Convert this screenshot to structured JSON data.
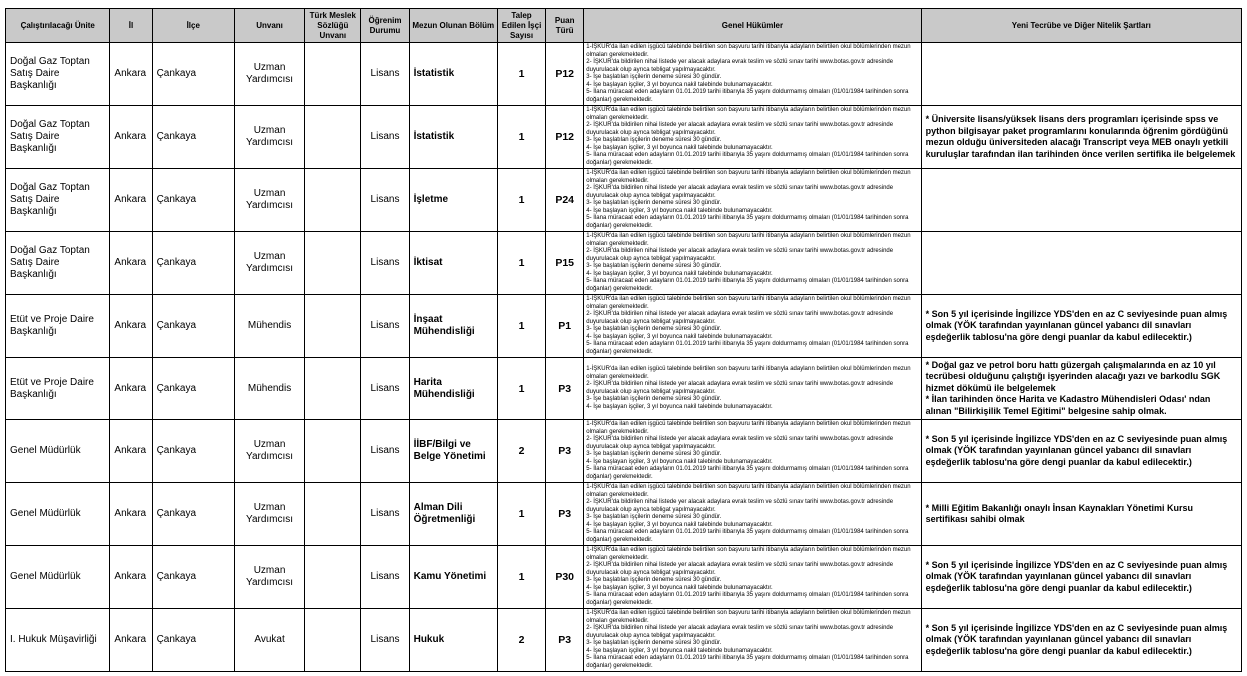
{
  "colors": {
    "header_bg": "#c9c9c9",
    "border": "#000000",
    "page_bg": "#ffffff"
  },
  "table": {
    "headers": [
      {
        "id": "unit",
        "label": "Çalıştırılacağı Ünite"
      },
      {
        "id": "province",
        "label": "İl"
      },
      {
        "id": "district",
        "label": "İlçe"
      },
      {
        "id": "title",
        "label": "Unvanı"
      },
      {
        "id": "dictionary-title",
        "label": "Türk Meslek Sözlüğü Unvanı"
      },
      {
        "id": "education",
        "label": "Öğrenim Durumu"
      },
      {
        "id": "department",
        "label": "Mezun Olunan Bölüm"
      },
      {
        "id": "requested-count",
        "label": "Talep Edilen İşçi Sayısı"
      },
      {
        "id": "score-type",
        "label": "Puan Türü"
      },
      {
        "id": "general-provisions",
        "label": "Genel Hükümler"
      },
      {
        "id": "requirements",
        "label": "Yeni Tecrübe ve Diğer Nitelik Şartları"
      }
    ],
    "general_provisions_items": [
      "1-İŞKUR'da ilan edilen işgücü talebinde belirtilen son başvuru tarihi itibarıyla adayların belirtilen okul bölümlerinden mezun olmaları gerekmektedir.",
      "2- İŞKUR'da bildirilen nihai listede yer alacak adaylara evrak teslim ve sözlü sınav tarihi www.botas.gov.tr adresinde duyurulacak olup ayrıca tebligat yapılmayacaktır.",
      "3- İşe başlatılan işçilerin deneme süresi 30 gündür.",
      "4- İşe başlayan işçiler,  3 yıl boyunca nakil talebinde bulunamayacaktır.",
      "5- İlana müracaat eden adayların 01.01.2019 tarihi itibarıyla 35 yaşını doldurmamış olmaları (01/01/1984 tarihinden sonra doğanlar) gerekmektedir."
    ],
    "rows": [
      {
        "unit": "Doğal Gaz Toptan Satış Daire Başkanlığı",
        "province": "Ankara",
        "district": "Çankaya",
        "title": "Uzman Yardımcısı",
        "dictionary_title": "",
        "education": "Lisans",
        "department": "İstatistik",
        "requested_count": "1",
        "score_type": "P12",
        "general_provisions_count": 5,
        "requirements": []
      },
      {
        "unit": "Doğal Gaz Toptan Satış Daire Başkanlığı",
        "province": "Ankara",
        "district": "Çankaya",
        "title": "Uzman Yardımcısı",
        "dictionary_title": "",
        "education": "Lisans",
        "department": "İstatistik",
        "requested_count": "1",
        "score_type": "P12",
        "general_provisions_count": 5,
        "requirements": [
          "* Üniversite lisans/yüksek lisans ders programları içerisinde spss ve python bilgisayar paket programlarını konularında öğrenim gördüğünü mezun olduğu üniversiteden alacağı Transcript veya MEB onaylı yetkili kuruluşlar tarafından ilan tarihinden önce verilen sertifika ile belgelemek"
        ]
      },
      {
        "unit": "Doğal Gaz Toptan Satış Daire Başkanlığı",
        "province": "Ankara",
        "district": "Çankaya",
        "title": "Uzman Yardımcısı",
        "dictionary_title": "",
        "education": "Lisans",
        "department": "İşletme",
        "requested_count": "1",
        "score_type": "P24",
        "general_provisions_count": 5,
        "requirements": []
      },
      {
        "unit": "Doğal Gaz Toptan Satış Daire Başkanlığı",
        "province": "Ankara",
        "district": "Çankaya",
        "title": "Uzman Yardımcısı",
        "dictionary_title": "",
        "education": "Lisans",
        "department": "İktisat",
        "requested_count": "1",
        "score_type": "P15",
        "general_provisions_count": 5,
        "requirements": []
      },
      {
        "unit": "Etüt ve Proje Daire Başkanlığı",
        "province": "Ankara",
        "district": "Çankaya",
        "title": "Mühendis",
        "dictionary_title": "",
        "education": "Lisans",
        "department": "İnşaat Mühendisliği",
        "requested_count": "1",
        "score_type": "P1",
        "general_provisions_count": 5,
        "requirements": [
          "* Son 5 yıl içerisinde İngilizce  YDS'den en az C seviyesinde puan almış olmak (YÖK tarafından yayınlanan güncel yabancı dil sınavları eşdeğerlik tablosu'na göre dengi puanlar da kabul edilecektir.)"
        ]
      },
      {
        "unit": "Etüt ve Proje Daire Başkanlığı",
        "province": "Ankara",
        "district": "Çankaya",
        "title": "Mühendis",
        "dictionary_title": "",
        "education": "Lisans",
        "department": "Harita Mühendisliği",
        "requested_count": "1",
        "score_type": "P3",
        "general_provisions_count": 4,
        "requirements": [
          "* Doğal gaz ve petrol boru hattı güzergah çalışmalarında en az 10 yıl tecrübesi olduğunu çalıştığı işyerinden alacağı yazı ve barkodlu SGK hizmet dökümü ile belgelemek",
          "* İlan tarihinden önce Harita ve Kadastro Mühendisleri Odası' ndan alınan \"Bilirkişilik Temel Eğitimi\" belgesine sahip olmak."
        ]
      },
      {
        "unit": "Genel Müdürlük",
        "province": "Ankara",
        "district": "Çankaya",
        "title": "Uzman Yardımcısı",
        "dictionary_title": "",
        "education": "Lisans",
        "department": "İİBF/Bilgi ve Belge Yönetimi",
        "requested_count": "2",
        "score_type": "P3",
        "general_provisions_count": 5,
        "requirements": [
          "* Son 5 yıl içerisinde İngilizce  YDS'den en az C seviyesinde puan almış olmak (YÖK tarafından yayınlanan güncel yabancı dil sınavları eşdeğerlik tablosu'na göre dengi puanlar da kabul edilecektir.)"
        ]
      },
      {
        "unit": "Genel Müdürlük",
        "province": "Ankara",
        "district": "Çankaya",
        "title": "Uzman Yardımcısı",
        "dictionary_title": "",
        "education": "Lisans",
        "department": "Alman Dili Öğretmenliği",
        "requested_count": "1",
        "score_type": "P3",
        "general_provisions_count": 5,
        "requirements": [
          "* Milli Eğitim Bakanlığı onaylı İnsan Kaynakları Yönetimi Kursu sertifikası sahibi olmak"
        ]
      },
      {
        "unit": "Genel Müdürlük",
        "province": "Ankara",
        "district": "Çankaya",
        "title": "Uzman Yardımcısı",
        "dictionary_title": "",
        "education": "Lisans",
        "department": "Kamu Yönetimi",
        "requested_count": "1",
        "score_type": "P30",
        "general_provisions_count": 5,
        "requirements": [
          "* Son 5 yıl içerisinde İngilizce  YDS'den en az C seviyesinde puan almış olmak (YÖK tarafından yayınlanan güncel yabancı dil sınavları eşdeğerlik tablosu'na göre dengi puanlar da kabul edilecektir.)"
        ]
      },
      {
        "unit": "I. Hukuk Müşavirliği",
        "province": "Ankara",
        "district": "Çankaya",
        "title": "Avukat",
        "dictionary_title": "",
        "education": "Lisans",
        "department": "Hukuk",
        "requested_count": "2",
        "score_type": "P3",
        "general_provisions_count": 5,
        "requirements": [
          "* Son 5 yıl içerisinde İngilizce  YDS'den en az C seviyesinde puan almış olmak (YÖK tarafından yayınlanan güncel yabancı dil sınavları eşdeğerlik tablosu'na göre dengi puanlar da kabul edilecektir.)"
        ]
      }
    ]
  }
}
